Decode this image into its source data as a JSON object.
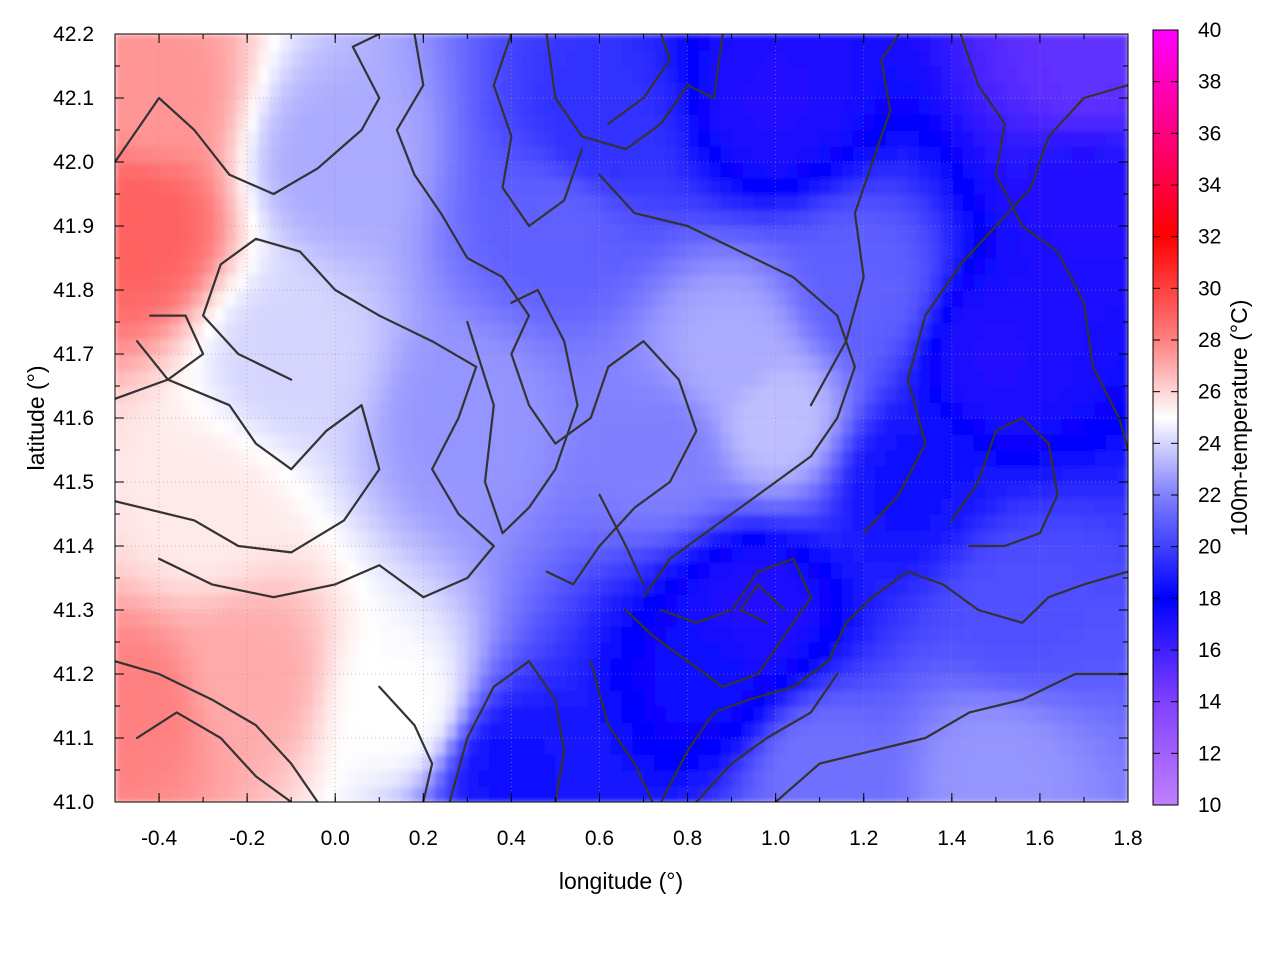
{
  "chart_data": {
    "type": "heatmap",
    "xlabel": "longitude (°)",
    "ylabel": "latitude (°)",
    "colorbar_label": "100m-temperature (°C)",
    "xlim": [
      -0.5,
      1.8
    ],
    "ylim": [
      41.0,
      42.2
    ],
    "clim": [
      10,
      40
    ],
    "x_ticks": [
      "-0.4",
      "-0.2",
      "0.0",
      "0.2",
      "0.4",
      "0.6",
      "0.8",
      "1.0",
      "1.2",
      "1.4",
      "1.6",
      "1.8"
    ],
    "x_tick_values": [
      -0.4,
      -0.2,
      0.0,
      0.2,
      0.4,
      0.6,
      0.8,
      1.0,
      1.2,
      1.4,
      1.6,
      1.8
    ],
    "y_ticks": [
      "41.0",
      "41.1",
      "41.2",
      "41.3",
      "41.4",
      "41.5",
      "41.6",
      "41.7",
      "41.8",
      "41.9",
      "42.0",
      "42.1",
      "42.2"
    ],
    "y_tick_values": [
      41.0,
      41.1,
      41.2,
      41.3,
      41.4,
      41.5,
      41.6,
      41.7,
      41.8,
      41.9,
      42.0,
      42.1,
      42.2
    ],
    "colorbar_ticks": [
      "10",
      "12",
      "14",
      "16",
      "18",
      "20",
      "22",
      "24",
      "26",
      "28",
      "30",
      "32",
      "34",
      "36",
      "38",
      "40"
    ],
    "colorbar_tick_values": [
      10,
      12,
      14,
      16,
      18,
      20,
      22,
      24,
      26,
      28,
      30,
      32,
      34,
      36,
      38,
      40
    ],
    "colormap": [
      {
        "v": 10,
        "color": "#c080ff"
      },
      {
        "v": 14,
        "color": "#8040ff"
      },
      {
        "v": 18,
        "color": "#0000ff"
      },
      {
        "v": 22,
        "color": "#8080ff"
      },
      {
        "v": 25,
        "color": "#ffffff"
      },
      {
        "v": 28,
        "color": "#ff8080"
      },
      {
        "v": 32,
        "color": "#ff0000"
      },
      {
        "v": 36,
        "color": "#ff0080"
      },
      {
        "v": 40,
        "color": "#ff00ff"
      }
    ],
    "grid": true,
    "field_samples": [
      {
        "lon": -0.45,
        "lat": 41.9,
        "t": 29
      },
      {
        "lon": -0.42,
        "lat": 42.1,
        "t": 27.5
      },
      {
        "lon": -0.45,
        "lat": 41.15,
        "t": 28
      },
      {
        "lon": -0.2,
        "lat": 41.2,
        "t": 27
      },
      {
        "lon": -0.3,
        "lat": 41.45,
        "t": 25.5
      },
      {
        "lon": -0.1,
        "lat": 41.7,
        "t": 24
      },
      {
        "lon": 0.0,
        "lat": 42.0,
        "t": 23
      },
      {
        "lon": 0.15,
        "lat": 41.15,
        "t": 25
      },
      {
        "lon": 0.3,
        "lat": 41.6,
        "t": 22.5
      },
      {
        "lon": 0.5,
        "lat": 41.9,
        "t": 21
      },
      {
        "lon": 0.6,
        "lat": 42.05,
        "t": 19.5
      },
      {
        "lon": 0.75,
        "lat": 41.55,
        "t": 22
      },
      {
        "lon": 0.9,
        "lat": 41.7,
        "t": 23
      },
      {
        "lon": 1.0,
        "lat": 41.6,
        "t": 23.5
      },
      {
        "lon": 0.85,
        "lat": 41.2,
        "t": 17.5
      },
      {
        "lon": 0.95,
        "lat": 41.3,
        "t": 17
      },
      {
        "lon": 0.4,
        "lat": 41.05,
        "t": 18.5
      },
      {
        "lon": 1.0,
        "lat": 42.1,
        "t": 17
      },
      {
        "lon": 1.2,
        "lat": 41.8,
        "t": 21
      },
      {
        "lon": 1.3,
        "lat": 41.5,
        "t": 18.5
      },
      {
        "lon": 1.5,
        "lat": 41.7,
        "t": 17
      },
      {
        "lon": 1.7,
        "lat": 41.95,
        "t": 17
      },
      {
        "lon": 1.7,
        "lat": 42.15,
        "t": 15
      },
      {
        "lon": 1.55,
        "lat": 41.3,
        "t": 20.5
      },
      {
        "lon": 1.5,
        "lat": 41.05,
        "t": 22.5
      },
      {
        "lon": 1.1,
        "lat": 41.05,
        "t": 21.5
      }
    ],
    "contours": [
      [
        [
          -0.5,
          41.63
        ],
        [
          -0.38,
          41.66
        ],
        [
          -0.24,
          41.62
        ],
        [
          -0.18,
          41.56
        ],
        [
          -0.1,
          41.52
        ],
        [
          -0.02,
          41.58
        ],
        [
          0.06,
          41.62
        ],
        [
          0.1,
          41.52
        ],
        [
          0.02,
          41.44
        ],
        [
          -0.1,
          41.39
        ],
        [
          -0.22,
          41.4
        ],
        [
          -0.32,
          41.44
        ],
        [
          -0.5,
          41.47
        ]
      ],
      [
        [
          -0.4,
          41.38
        ],
        [
          -0.28,
          41.34
        ],
        [
          -0.14,
          41.32
        ],
        [
          0.0,
          41.34
        ],
        [
          0.1,
          41.37
        ],
        [
          0.2,
          41.32
        ],
        [
          0.3,
          41.35
        ],
        [
          0.36,
          41.4
        ],
        [
          0.28,
          41.45
        ],
        [
          0.22,
          41.52
        ],
        [
          0.28,
          41.6
        ],
        [
          0.32,
          41.68
        ],
        [
          0.22,
          41.72
        ],
        [
          0.1,
          41.76
        ],
        [
          0.0,
          41.8
        ],
        [
          -0.08,
          41.86
        ],
        [
          -0.18,
          41.88
        ],
        [
          -0.26,
          41.84
        ],
        [
          -0.3,
          41.76
        ],
        [
          -0.22,
          41.7
        ],
        [
          -0.1,
          41.66
        ]
      ],
      [
        [
          -0.5,
          42.0
        ],
        [
          -0.4,
          42.1
        ],
        [
          -0.32,
          42.05
        ],
        [
          -0.24,
          41.98
        ],
        [
          -0.14,
          41.95
        ],
        [
          -0.04,
          41.99
        ],
        [
          0.06,
          42.05
        ],
        [
          0.1,
          42.1
        ],
        [
          0.04,
          42.18
        ],
        [
          0.1,
          42.2
        ]
      ],
      [
        [
          0.18,
          42.2
        ],
        [
          0.2,
          42.12
        ],
        [
          0.14,
          42.05
        ],
        [
          0.18,
          41.98
        ],
        [
          0.24,
          41.92
        ],
        [
          0.3,
          41.85
        ],
        [
          0.38,
          41.82
        ],
        [
          0.44,
          41.76
        ],
        [
          0.4,
          41.7
        ],
        [
          0.44,
          41.62
        ],
        [
          0.5,
          41.56
        ],
        [
          0.58,
          41.6
        ],
        [
          0.62,
          41.68
        ],
        [
          0.7,
          41.72
        ],
        [
          0.78,
          41.66
        ],
        [
          0.82,
          41.58
        ],
        [
          0.76,
          41.5
        ],
        [
          0.68,
          41.46
        ],
        [
          0.6,
          41.4
        ],
        [
          0.54,
          41.34
        ],
        [
          0.48,
          41.36
        ]
      ],
      [
        [
          0.3,
          41.75
        ],
        [
          0.36,
          41.62
        ],
        [
          0.34,
          41.5
        ],
        [
          0.38,
          41.42
        ],
        [
          0.44,
          41.46
        ],
        [
          0.5,
          41.52
        ],
        [
          0.55,
          41.62
        ],
        [
          0.52,
          41.72
        ],
        [
          0.46,
          41.8
        ],
        [
          0.4,
          41.78
        ]
      ],
      [
        [
          0.48,
          42.2
        ],
        [
          0.5,
          42.1
        ],
        [
          0.56,
          42.04
        ],
        [
          0.66,
          42.02
        ],
        [
          0.74,
          42.06
        ],
        [
          0.8,
          42.12
        ],
        [
          0.86,
          42.1
        ],
        [
          0.88,
          42.2
        ]
      ],
      [
        [
          0.6,
          41.98
        ],
        [
          0.68,
          41.92
        ],
        [
          0.8,
          41.9
        ],
        [
          0.92,
          41.86
        ],
        [
          1.04,
          41.82
        ],
        [
          1.14,
          41.76
        ],
        [
          1.18,
          41.68
        ],
        [
          1.14,
          41.6
        ],
        [
          1.08,
          41.54
        ],
        [
          1.0,
          41.5
        ],
        [
          0.92,
          41.46
        ],
        [
          0.84,
          41.42
        ],
        [
          0.76,
          41.38
        ],
        [
          0.7,
          41.32
        ]
      ],
      [
        [
          0.66,
          41.3
        ],
        [
          0.72,
          41.26
        ],
        [
          0.8,
          41.22
        ],
        [
          0.88,
          41.18
        ],
        [
          0.96,
          41.2
        ],
        [
          1.02,
          41.26
        ],
        [
          1.08,
          41.32
        ],
        [
          1.04,
          41.38
        ],
        [
          0.96,
          41.36
        ],
        [
          0.9,
          41.3
        ],
        [
          0.82,
          41.28
        ],
        [
          0.74,
          41.3
        ]
      ],
      [
        [
          0.58,
          41.22
        ],
        [
          0.62,
          41.12
        ],
        [
          0.68,
          41.06
        ],
        [
          0.72,
          41.0
        ]
      ],
      [
        [
          0.74,
          41.0
        ],
        [
          0.8,
          41.08
        ],
        [
          0.86,
          41.14
        ],
        [
          0.94,
          41.16
        ],
        [
          1.04,
          41.18
        ],
        [
          1.12,
          41.22
        ],
        [
          1.16,
          41.28
        ],
        [
          1.22,
          41.32
        ],
        [
          1.3,
          41.36
        ],
        [
          1.38,
          41.34
        ],
        [
          1.46,
          41.3
        ],
        [
          1.56,
          41.28
        ],
        [
          1.62,
          41.32
        ],
        [
          1.7,
          41.34
        ],
        [
          1.8,
          41.36
        ]
      ],
      [
        [
          0.82,
          41.0
        ],
        [
          0.9,
          41.06
        ],
        [
          0.98,
          41.1
        ],
        [
          1.08,
          41.14
        ],
        [
          1.14,
          41.2
        ]
      ],
      [
        [
          1.0,
          41.0
        ],
        [
          1.1,
          41.06
        ],
        [
          1.22,
          41.08
        ],
        [
          1.34,
          41.1
        ],
        [
          1.44,
          41.14
        ],
        [
          1.56,
          41.16
        ],
        [
          1.68,
          41.2
        ],
        [
          1.8,
          41.2
        ]
      ],
      [
        [
          1.2,
          41.42
        ],
        [
          1.28,
          41.48
        ],
        [
          1.34,
          41.56
        ],
        [
          1.3,
          41.66
        ],
        [
          1.34,
          41.76
        ],
        [
          1.42,
          41.84
        ],
        [
          1.5,
          41.9
        ],
        [
          1.58,
          41.96
        ],
        [
          1.62,
          42.04
        ],
        [
          1.7,
          42.1
        ],
        [
          1.8,
          42.12
        ]
      ],
      [
        [
          1.08,
          41.62
        ],
        [
          1.16,
          41.72
        ],
        [
          1.2,
          41.82
        ],
        [
          1.18,
          41.92
        ],
        [
          1.22,
          42.0
        ],
        [
          1.26,
          42.08
        ],
        [
          1.24,
          42.16
        ],
        [
          1.28,
          42.2
        ]
      ],
      [
        [
          1.42,
          42.2
        ],
        [
          1.46,
          42.12
        ],
        [
          1.52,
          42.06
        ],
        [
          1.5,
          41.98
        ],
        [
          1.56,
          41.9
        ],
        [
          1.64,
          41.86
        ],
        [
          1.7,
          41.78
        ],
        [
          1.72,
          41.68
        ],
        [
          1.78,
          41.6
        ],
        [
          1.8,
          41.55
        ]
      ],
      [
        [
          1.4,
          41.44
        ],
        [
          1.46,
          41.5
        ],
        [
          1.5,
          41.58
        ],
        [
          1.56,
          41.6
        ],
        [
          1.62,
          41.56
        ],
        [
          1.64,
          41.48
        ],
        [
          1.6,
          41.42
        ],
        [
          1.52,
          41.4
        ],
        [
          1.44,
          41.4
        ]
      ],
      [
        [
          -0.45,
          41.72
        ],
        [
          -0.38,
          41.66
        ],
        [
          -0.3,
          41.7
        ],
        [
          -0.34,
          41.76
        ],
        [
          -0.42,
          41.76
        ]
      ],
      [
        [
          -0.5,
          41.22
        ],
        [
          -0.4,
          41.2
        ],
        [
          -0.28,
          41.16
        ],
        [
          -0.18,
          41.12
        ],
        [
          -0.1,
          41.06
        ],
        [
          -0.04,
          41.0
        ]
      ],
      [
        [
          -0.45,
          41.1
        ],
        [
          -0.36,
          41.14
        ],
        [
          -0.26,
          41.1
        ],
        [
          -0.18,
          41.04
        ],
        [
          -0.1,
          41.0
        ]
      ],
      [
        [
          0.1,
          41.18
        ],
        [
          0.18,
          41.12
        ],
        [
          0.22,
          41.06
        ],
        [
          0.2,
          41.0
        ]
      ],
      [
        [
          0.26,
          41.0
        ],
        [
          0.3,
          41.1
        ],
        [
          0.36,
          41.18
        ],
        [
          0.44,
          41.22
        ],
        [
          0.5,
          41.16
        ],
        [
          0.52,
          41.08
        ],
        [
          0.5,
          41.0
        ]
      ],
      [
        [
          0.4,
          42.2
        ],
        [
          0.36,
          42.12
        ],
        [
          0.4,
          42.04
        ],
        [
          0.38,
          41.96
        ],
        [
          0.44,
          41.9
        ],
        [
          0.52,
          41.94
        ],
        [
          0.56,
          42.02
        ]
      ],
      [
        [
          0.62,
          42.06
        ],
        [
          0.7,
          42.1
        ],
        [
          0.76,
          42.16
        ],
        [
          0.74,
          42.2
        ]
      ],
      [
        [
          0.6,
          41.48
        ],
        [
          0.66,
          41.4
        ],
        [
          0.7,
          41.34
        ]
      ],
      [
        [
          1.02,
          41.3
        ],
        [
          0.96,
          41.34
        ],
        [
          0.92,
          41.3
        ],
        [
          0.98,
          41.28
        ]
      ]
    ]
  }
}
